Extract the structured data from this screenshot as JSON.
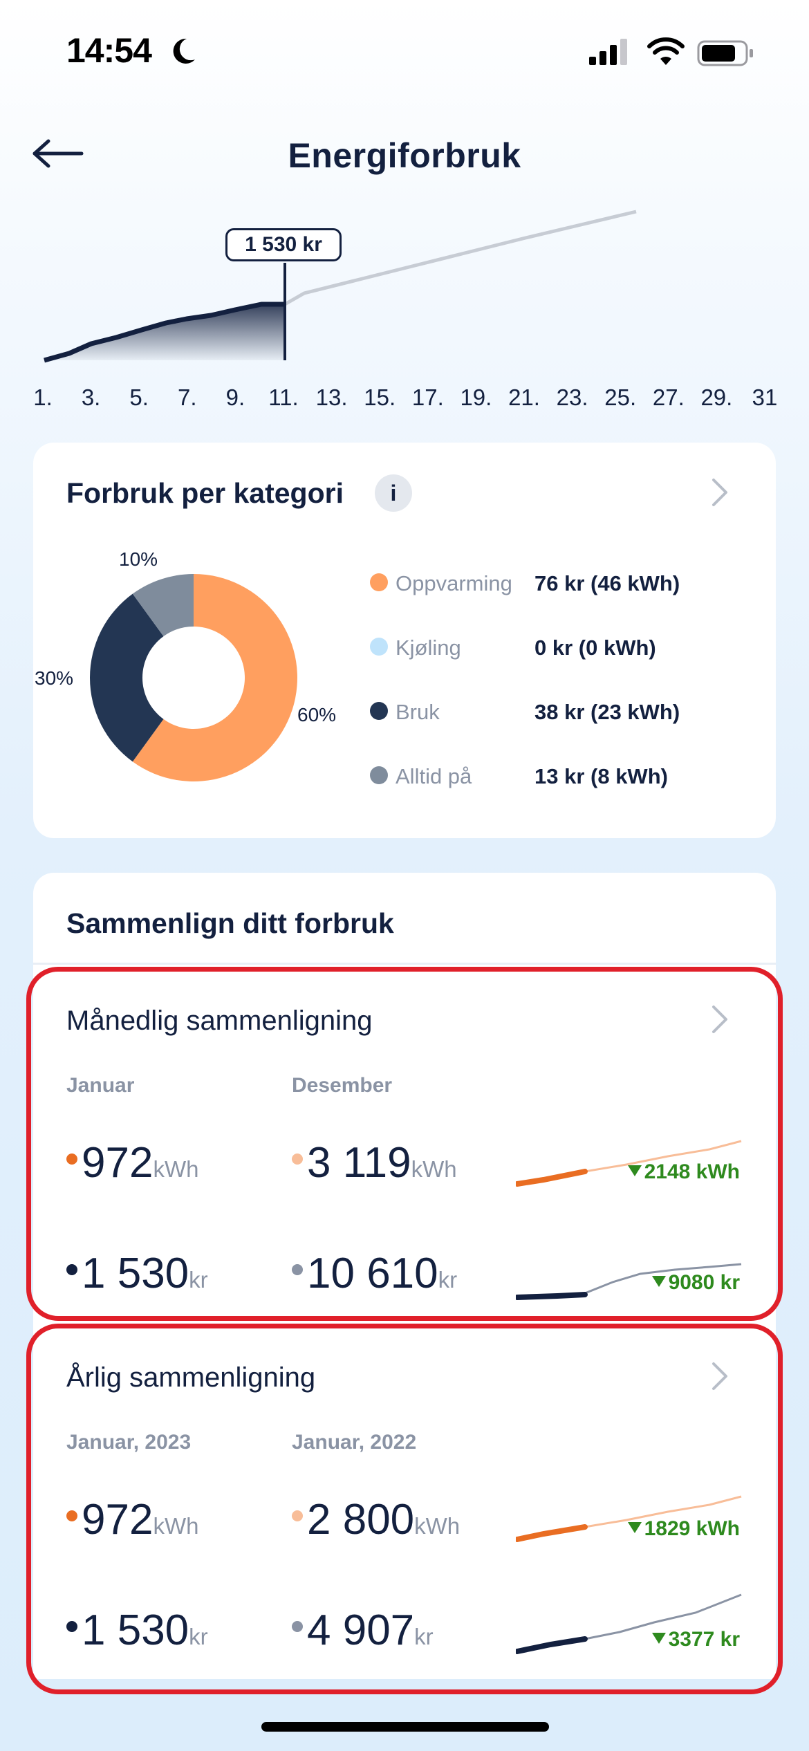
{
  "status_bar": {
    "time": "14:54"
  },
  "header": {
    "title": "Energiforbruk",
    "back_icon": "back-arrow-icon"
  },
  "usage_chart": {
    "tooltip": "1 530 kr",
    "x_ticks": [
      "1.",
      "3.",
      "5.",
      "7.",
      "9.",
      "11.",
      "13.",
      "15.",
      "17.",
      "19.",
      "21.",
      "23.",
      "25.",
      "27.",
      "29.",
      "31"
    ],
    "colors": {
      "actual": "#13203f",
      "forecast": "#c7ccd4"
    }
  },
  "category_card": {
    "title": "Forbruk per kategori",
    "info_icon": "info-icon",
    "donut_labels": {
      "slice_a": "60%",
      "slice_b": "30%",
      "slice_c": "10%"
    },
    "donut_values": [
      0.6,
      0.3,
      0.1
    ],
    "legend": [
      {
        "label": "Oppvarming",
        "value": "76 kr (46 kWh)",
        "color": "#ff9f5f"
      },
      {
        "label": "Kjøling",
        "value": "0 kr (0 kWh)",
        "color": "#bfe3fb"
      },
      {
        "label": "Bruk",
        "value": "38 kr (23 kWh)",
        "color": "#233653"
      },
      {
        "label": "Alltid på",
        "value": "13 kr (8 kWh)",
        "color": "#7f8c9c"
      }
    ]
  },
  "compare_card": {
    "title": "Sammenlign ditt forbruk",
    "monthly": {
      "title": "Månedlig sammenligning",
      "current_label": "Januar",
      "previous_label": "Desember",
      "current_kwh": "972",
      "previous_kwh": "3 119",
      "kwh_unit": "kWh",
      "current_kr": "1 530",
      "previous_kr": "10 610",
      "kr_unit": "kr",
      "delta_kwh": "2148 kWh",
      "delta_kr": "9080 kr"
    },
    "yearly": {
      "title": "Årlig sammenligning",
      "current_label": "Januar, 2023",
      "previous_label": "Januar, 2022",
      "current_kwh": "972",
      "previous_kwh": "2 800",
      "kwh_unit": "kWh",
      "current_kr": "1 530",
      "previous_kr": "4 907",
      "kr_unit": "kr",
      "delta_kwh": "1829 kWh",
      "delta_kr": "3377 kr"
    },
    "colors": {
      "kwh_current": "#e96d22",
      "kwh_previous": "#f8bd98",
      "kr_current": "#13203f",
      "kr_previous": "#8a93a4",
      "delta": "#2e8a1e"
    }
  }
}
